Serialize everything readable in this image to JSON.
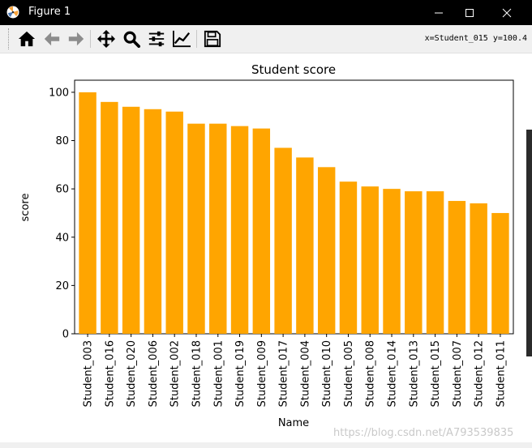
{
  "window": {
    "title": "Figure 1"
  },
  "toolbar": {
    "buttons": [
      {
        "name": "home-icon"
      },
      {
        "name": "back-arrow-icon"
      },
      {
        "name": "forward-arrow-icon"
      },
      {
        "name": "pan-icon"
      },
      {
        "name": "zoom-icon"
      },
      {
        "name": "subplots-config-icon"
      },
      {
        "name": "edit-axes-icon"
      },
      {
        "name": "save-icon"
      }
    ],
    "coordinates": "x=Student_015 y=100.4"
  },
  "watermark": "https://blog.csdn.net/A793539835",
  "colors": {
    "bar": "#ffa500",
    "titlebar": "#000000",
    "toolbar": "#f0f0f0"
  },
  "chart_data": {
    "type": "bar",
    "title": "Student score",
    "xlabel": "Name",
    "ylabel": "score",
    "categories": [
      "Student_003",
      "Student_016",
      "Student_020",
      "Student_006",
      "Student_002",
      "Student_018",
      "Student_001",
      "Student_019",
      "Student_009",
      "Student_017",
      "Student_004",
      "Student_010",
      "Student_005",
      "Student_008",
      "Student_014",
      "Student_013",
      "Student_015",
      "Student_007",
      "Student_012",
      "Student_011"
    ],
    "values": [
      100,
      96,
      94,
      93,
      92,
      87,
      87,
      86,
      85,
      77,
      73,
      69,
      63,
      61,
      60,
      59,
      59,
      55,
      54,
      50
    ],
    "ylim": [
      0,
      105
    ],
    "yticks": [
      0,
      20,
      40,
      60,
      80,
      100
    ],
    "grid": false,
    "x_tick_rotation": 90
  }
}
